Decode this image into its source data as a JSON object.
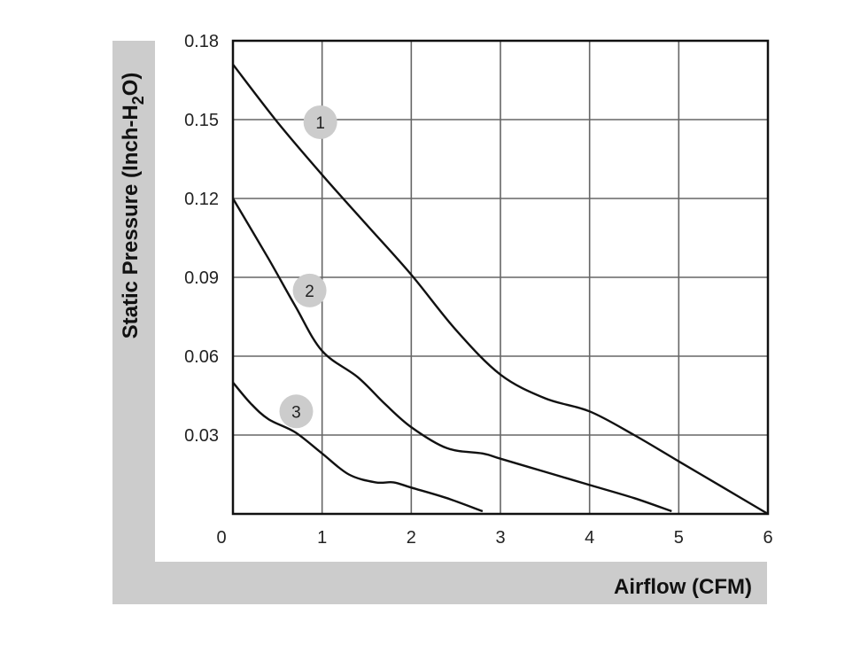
{
  "chart_data": {
    "type": "line",
    "title": "",
    "xlabel": "Airflow (CFM)",
    "ylabel": "Static Pressure (Inch-H2O)",
    "ylabel_parts": {
      "prefix": "Static Pressure (Inch-H",
      "sub": "2",
      "suffix": "O)"
    },
    "xlim": [
      0,
      6
    ],
    "ylim": [
      0,
      0.18
    ],
    "x_ticks": [
      "0",
      "1",
      "2",
      "3",
      "4",
      "5",
      "6"
    ],
    "y_ticks": [
      "0.03",
      "0.06",
      "0.09",
      "0.12",
      "0.15",
      "0.18"
    ],
    "grid": true,
    "frame_color": "#cccccc",
    "line_color": "#111111",
    "marker_color": "#cccccc",
    "series": [
      {
        "name": "1",
        "marker_at": {
          "x": 0.98,
          "y": 0.149
        },
        "points": [
          [
            0,
            0.171
          ],
          [
            0.5,
            0.149
          ],
          [
            1,
            0.129
          ],
          [
            1.5,
            0.11
          ],
          [
            2,
            0.091
          ],
          [
            2.5,
            0.07
          ],
          [
            3,
            0.053
          ],
          [
            3.5,
            0.044
          ],
          [
            4,
            0.039
          ],
          [
            4.5,
            0.03
          ],
          [
            5,
            0.02
          ],
          [
            5.5,
            0.01
          ],
          [
            6,
            0.0
          ]
        ]
      },
      {
        "name": "2",
        "marker_at": {
          "x": 0.86,
          "y": 0.085
        },
        "points": [
          [
            0,
            0.12
          ],
          [
            0.4,
            0.097
          ],
          [
            0.7,
            0.079
          ],
          [
            1,
            0.062
          ],
          [
            1.4,
            0.052
          ],
          [
            1.7,
            0.042
          ],
          [
            2,
            0.033
          ],
          [
            2.4,
            0.025
          ],
          [
            2.8,
            0.023
          ],
          [
            3,
            0.021
          ],
          [
            3.5,
            0.016
          ],
          [
            4,
            0.011
          ],
          [
            4.5,
            0.006
          ],
          [
            4.92,
            0.001
          ]
        ]
      },
      {
        "name": "3",
        "marker_at": {
          "x": 0.71,
          "y": 0.039
        },
        "points": [
          [
            0,
            0.05
          ],
          [
            0.2,
            0.042
          ],
          [
            0.4,
            0.036
          ],
          [
            0.7,
            0.031
          ],
          [
            1,
            0.023
          ],
          [
            1.3,
            0.015
          ],
          [
            1.6,
            0.012
          ],
          [
            1.8,
            0.012
          ],
          [
            2,
            0.01
          ],
          [
            2.4,
            0.006
          ],
          [
            2.8,
            0.001
          ]
        ]
      }
    ]
  }
}
